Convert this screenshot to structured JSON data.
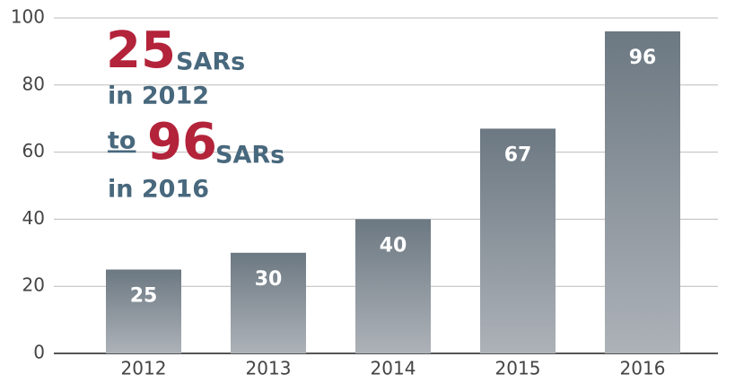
{
  "chart_data": {
    "type": "bar",
    "categories": [
      "2012",
      "2013",
      "2014",
      "2015",
      "2016"
    ],
    "values": [
      25,
      30,
      40,
      67,
      96
    ],
    "color_top": "#6c7882",
    "color_bottom": "#adb2b8",
    "ylim": [
      0,
      100
    ],
    "yticks": [
      0,
      20,
      40,
      60,
      80,
      100
    ],
    "grid": true,
    "annotation": {
      "first_number": "25",
      "first_unit": "SARs",
      "first_year": "in 2012",
      "connector": "to",
      "second_number": "96",
      "second_unit": "SARs",
      "second_year": "in 2016"
    }
  }
}
